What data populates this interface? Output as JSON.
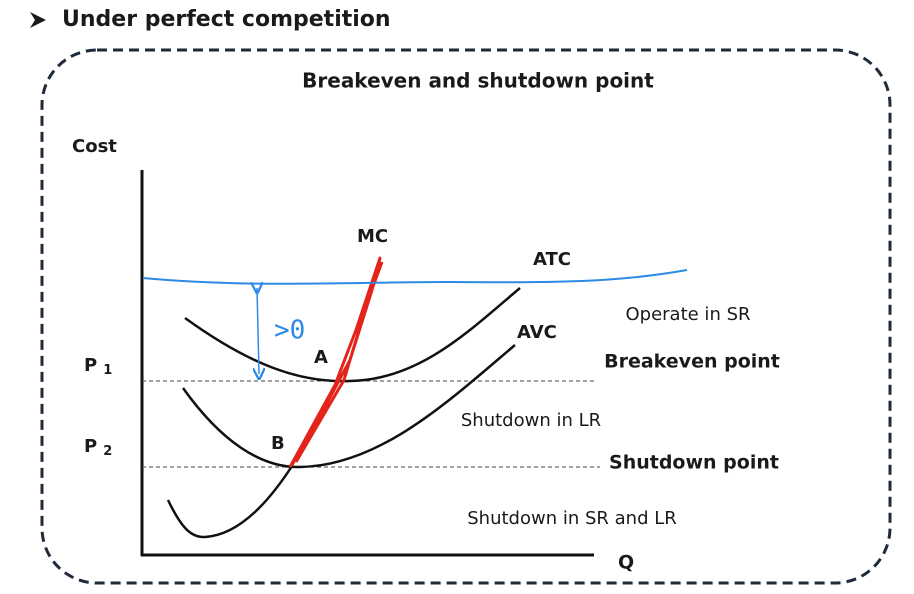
{
  "header": {
    "title": "Under perfect competition"
  },
  "diagram": {
    "title": "Breakeven and shutdown point",
    "y_axis": "Cost",
    "x_axis": "Q",
    "curves": {
      "mc": "MC",
      "atc": "ATC",
      "avc": "AVC"
    },
    "points": {
      "a": "A",
      "b": "B"
    },
    "prices": [
      {
        "text": "P",
        "subscript": "1"
      },
      {
        "text": "P",
        "subscript": "2"
      }
    ],
    "annotation": ">0",
    "regions": {
      "operate": "Operate in SR",
      "breakeven": "Breakeven point",
      "shutdown_lr": "Shutdown in LR",
      "shutdown": "Shutdown point",
      "shutdown_all": "Shutdown in SR and LR"
    }
  }
}
